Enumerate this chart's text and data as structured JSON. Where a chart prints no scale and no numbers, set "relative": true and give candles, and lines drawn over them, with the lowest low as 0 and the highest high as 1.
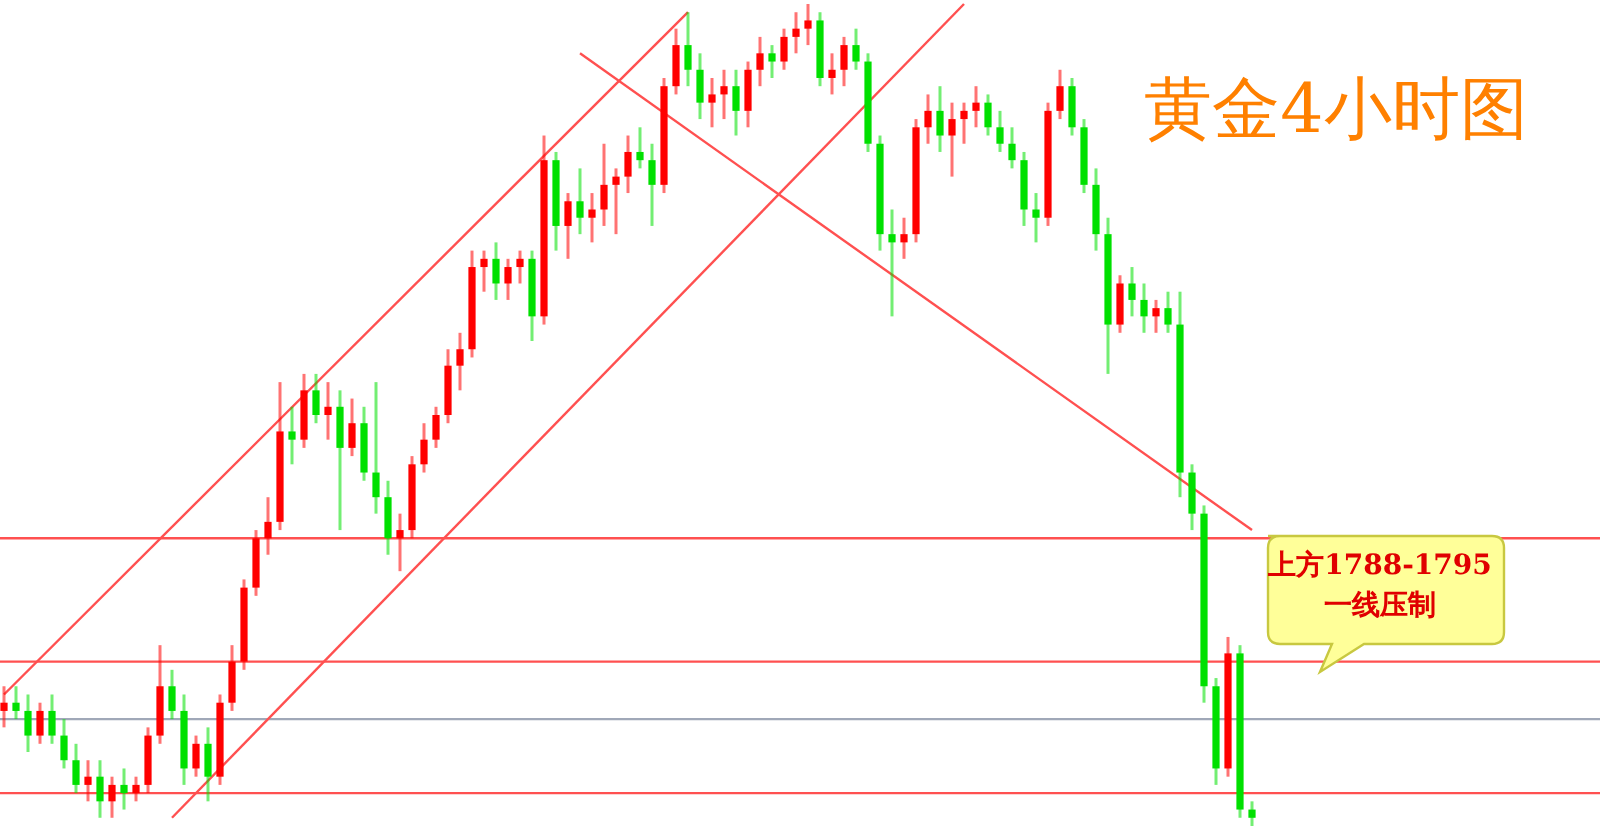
{
  "chart_data": {
    "type": "candlestick",
    "title": "黄金4小时图",
    "relative": true,
    "categories": [
      null,
      null,
      null,
      null,
      null,
      null,
      null,
      null,
      null,
      null,
      null,
      null,
      null,
      null,
      null,
      null,
      null,
      null,
      null,
      null,
      null,
      null,
      null,
      null,
      null,
      null,
      null,
      null,
      null,
      null,
      null,
      null,
      null,
      null,
      null,
      null,
      null,
      null,
      null,
      null,
      null,
      null,
      null,
      null,
      null,
      null,
      null,
      null,
      null,
      null,
      null,
      null,
      null,
      null,
      null,
      null,
      null,
      null,
      null,
      null,
      null,
      null,
      null,
      null,
      null,
      null,
      null,
      null,
      null,
      null,
      null,
      null,
      null,
      null,
      null,
      null,
      null,
      null,
      null,
      null,
      null,
      null,
      null,
      null,
      null,
      null,
      null,
      null,
      null,
      null,
      null,
      null,
      null,
      null,
      null,
      null,
      null,
      null,
      null,
      null,
      null,
      null,
      null,
      null,
      null
    ],
    "ohlc": [
      [
        0.14,
        0.17,
        0.12,
        0.15
      ],
      [
        0.15,
        0.17,
        0.13,
        0.14
      ],
      [
        0.14,
        0.16,
        0.09,
        0.11
      ],
      [
        0.11,
        0.15,
        0.1,
        0.14
      ],
      [
        0.14,
        0.16,
        0.1,
        0.11
      ],
      [
        0.11,
        0.13,
        0.07,
        0.08
      ],
      [
        0.08,
        0.1,
        0.04,
        0.05
      ],
      [
        0.05,
        0.08,
        0.03,
        0.06
      ],
      [
        0.06,
        0.08,
        0.01,
        0.03
      ],
      [
        0.03,
        0.06,
        0.01,
        0.05
      ],
      [
        0.05,
        0.07,
        0.02,
        0.04
      ],
      [
        0.04,
        0.06,
        0.03,
        0.05
      ],
      [
        0.05,
        0.12,
        0.04,
        0.11
      ],
      [
        0.11,
        0.22,
        0.1,
        0.17
      ],
      [
        0.17,
        0.19,
        0.13,
        0.14
      ],
      [
        0.14,
        0.16,
        0.05,
        0.07
      ],
      [
        0.07,
        0.11,
        0.06,
        0.1
      ],
      [
        0.1,
        0.12,
        0.03,
        0.06
      ],
      [
        0.06,
        0.16,
        0.05,
        0.15
      ],
      [
        0.15,
        0.22,
        0.14,
        0.2
      ],
      [
        0.2,
        0.3,
        0.19,
        0.29
      ],
      [
        0.29,
        0.36,
        0.28,
        0.35
      ],
      [
        0.35,
        0.4,
        0.33,
        0.37
      ],
      [
        0.37,
        0.54,
        0.36,
        0.48
      ],
      [
        0.48,
        0.51,
        0.44,
        0.47
      ],
      [
        0.47,
        0.55,
        0.46,
        0.53
      ],
      [
        0.53,
        0.55,
        0.49,
        0.5
      ],
      [
        0.5,
        0.54,
        0.47,
        0.51
      ],
      [
        0.51,
        0.53,
        0.36,
        0.46
      ],
      [
        0.46,
        0.52,
        0.45,
        0.49
      ],
      [
        0.49,
        0.51,
        0.42,
        0.43
      ],
      [
        0.43,
        0.54,
        0.38,
        0.4
      ],
      [
        0.4,
        0.42,
        0.33,
        0.35
      ],
      [
        0.35,
        0.38,
        0.31,
        0.36
      ],
      [
        0.36,
        0.45,
        0.35,
        0.44
      ],
      [
        0.44,
        0.49,
        0.43,
        0.47
      ],
      [
        0.47,
        0.51,
        0.46,
        0.5
      ],
      [
        0.5,
        0.58,
        0.49,
        0.56
      ],
      [
        0.56,
        0.6,
        0.53,
        0.58
      ],
      [
        0.58,
        0.7,
        0.57,
        0.68
      ],
      [
        0.68,
        0.7,
        0.65,
        0.69
      ],
      [
        0.69,
        0.71,
        0.64,
        0.66
      ],
      [
        0.66,
        0.69,
        0.64,
        0.68
      ],
      [
        0.68,
        0.7,
        0.66,
        0.69
      ],
      [
        0.69,
        0.7,
        0.59,
        0.62
      ],
      [
        0.62,
        0.84,
        0.61,
        0.81
      ],
      [
        0.81,
        0.82,
        0.7,
        0.73
      ],
      [
        0.73,
        0.77,
        0.69,
        0.76
      ],
      [
        0.76,
        0.8,
        0.72,
        0.74
      ],
      [
        0.74,
        0.77,
        0.71,
        0.75
      ],
      [
        0.75,
        0.83,
        0.73,
        0.78
      ],
      [
        0.78,
        0.8,
        0.72,
        0.79
      ],
      [
        0.79,
        0.84,
        0.77,
        0.82
      ],
      [
        0.82,
        0.85,
        0.8,
        0.81
      ],
      [
        0.81,
        0.83,
        0.73,
        0.78
      ],
      [
        0.78,
        0.91,
        0.77,
        0.9
      ],
      [
        0.9,
        0.97,
        0.89,
        0.95
      ],
      [
        0.95,
        0.99,
        0.9,
        0.92
      ],
      [
        0.92,
        0.94,
        0.86,
        0.88
      ],
      [
        0.88,
        0.91,
        0.85,
        0.89
      ],
      [
        0.89,
        0.92,
        0.86,
        0.9
      ],
      [
        0.9,
        0.92,
        0.84,
        0.87
      ],
      [
        0.87,
        0.93,
        0.85,
        0.92
      ],
      [
        0.92,
        0.96,
        0.9,
        0.94
      ],
      [
        0.94,
        0.95,
        0.91,
        0.93
      ],
      [
        0.93,
        0.97,
        0.92,
        0.96
      ],
      [
        0.96,
        0.99,
        0.94,
        0.97
      ],
      [
        0.97,
        1.0,
        0.95,
        0.98
      ],
      [
        0.98,
        0.99,
        0.9,
        0.91
      ],
      [
        0.91,
        0.94,
        0.89,
        0.92
      ],
      [
        0.92,
        0.96,
        0.9,
        0.95
      ],
      [
        0.95,
        0.97,
        0.92,
        0.93
      ],
      [
        0.93,
        0.94,
        0.82,
        0.83
      ],
      [
        0.83,
        0.84,
        0.7,
        0.72
      ],
      [
        0.72,
        0.75,
        0.62,
        0.71
      ],
      [
        0.71,
        0.74,
        0.69,
        0.72
      ],
      [
        0.72,
        0.86,
        0.71,
        0.85
      ],
      [
        0.85,
        0.89,
        0.83,
        0.87
      ],
      [
        0.87,
        0.9,
        0.82,
        0.84
      ],
      [
        0.84,
        0.88,
        0.79,
        0.86
      ],
      [
        0.86,
        0.88,
        0.83,
        0.87
      ],
      [
        0.87,
        0.9,
        0.85,
        0.88
      ],
      [
        0.88,
        0.89,
        0.84,
        0.85
      ],
      [
        0.85,
        0.87,
        0.82,
        0.83
      ],
      [
        0.83,
        0.85,
        0.8,
        0.81
      ],
      [
        0.81,
        0.82,
        0.73,
        0.75
      ],
      [
        0.75,
        0.77,
        0.71,
        0.74
      ],
      [
        0.74,
        0.88,
        0.73,
        0.87
      ],
      [
        0.87,
        0.92,
        0.86,
        0.9
      ],
      [
        0.9,
        0.91,
        0.84,
        0.85
      ],
      [
        0.85,
        0.86,
        0.77,
        0.78
      ],
      [
        0.78,
        0.8,
        0.7,
        0.72
      ],
      [
        0.72,
        0.74,
        0.55,
        0.61
      ],
      [
        0.61,
        0.67,
        0.6,
        0.66
      ],
      [
        0.66,
        0.68,
        0.62,
        0.64
      ],
      [
        0.64,
        0.66,
        0.6,
        0.62
      ],
      [
        0.62,
        0.64,
        0.6,
        0.63
      ],
      [
        0.63,
        0.65,
        0.6,
        0.61
      ],
      [
        0.61,
        0.65,
        0.4,
        0.43
      ],
      [
        0.43,
        0.44,
        0.36,
        0.38
      ],
      [
        0.38,
        0.39,
        0.15,
        0.17
      ],
      [
        0.17,
        0.18,
        0.05,
        0.07
      ],
      [
        0.07,
        0.23,
        0.06,
        0.21
      ],
      [
        0.21,
        0.22,
        0.01,
        0.02
      ],
      [
        0.02,
        0.03,
        0.0,
        0.01
      ]
    ],
    "series": [
      {
        "type": "line",
        "color": "#ff5050",
        "values": [
          0.16,
          null,
          null,
          null,
          null,
          null,
          null,
          null,
          null,
          null,
          null,
          null,
          null,
          null,
          null,
          null,
          null,
          null,
          null,
          null,
          null,
          null,
          null,
          null,
          null,
          null,
          null,
          null,
          null,
          null,
          null,
          null,
          null,
          null,
          null,
          null,
          null,
          null,
          null,
          null,
          null,
          null,
          null,
          null,
          null,
          null,
          null,
          null,
          null,
          null,
          null,
          null,
          null,
          null,
          null,
          null,
          null,
          0.99,
          null,
          null,
          null,
          null,
          null,
          null,
          null,
          null,
          null,
          null,
          null,
          null,
          null,
          null,
          null,
          null,
          null,
          null,
          null,
          null,
          null,
          null,
          null,
          null,
          null,
          null,
          null,
          null,
          null,
          null,
          null,
          null,
          null,
          null,
          null,
          null,
          null,
          null,
          null,
          null,
          null,
          null,
          null,
          null,
          null,
          null,
          null
        ]
      },
      {
        "type": "line",
        "color": "#ff5050",
        "values": [
          null,
          null,
          null,
          null,
          null,
          null,
          null,
          null,
          null,
          null,
          null,
          null,
          null,
          null,
          0.01,
          null,
          null,
          null,
          null,
          null,
          null,
          null,
          null,
          null,
          null,
          null,
          null,
          null,
          null,
          null,
          null,
          null,
          null,
          null,
          null,
          null,
          null,
          null,
          null,
          null,
          null,
          null,
          null,
          null,
          null,
          null,
          null,
          null,
          null,
          null,
          null,
          null,
          null,
          null,
          null,
          null,
          null,
          null,
          null,
          null,
          null,
          null,
          null,
          null,
          null,
          null,
          null,
          null,
          null,
          null,
          null,
          null,
          null,
          null,
          null,
          null,
          null,
          null,
          null,
          null,
          1.0,
          null,
          null,
          null,
          null,
          null,
          null,
          null,
          null,
          null,
          null,
          null,
          null,
          null,
          null,
          null,
          null,
          null,
          null,
          null,
          null,
          null,
          null,
          null,
          null
        ]
      },
      {
        "type": "line",
        "color": "#ff5050",
        "values": [
          null,
          null,
          null,
          null,
          null,
          null,
          null,
          null,
          null,
          null,
          null,
          null,
          null,
          null,
          null,
          null,
          null,
          null,
          null,
          null,
          null,
          null,
          null,
          null,
          null,
          null,
          null,
          null,
          null,
          null,
          null,
          null,
          null,
          null,
          null,
          null,
          null,
          null,
          null,
          null,
          null,
          null,
          null,
          null,
          null,
          null,
          null,
          null,
          0.94,
          null,
          null,
          null,
          null,
          null,
          null,
          null,
          null,
          null,
          null,
          null,
          null,
          null,
          null,
          null,
          null,
          null,
          null,
          null,
          null,
          null,
          null,
          null,
          null,
          null,
          null,
          null,
          null,
          null,
          null,
          null,
          null,
          null,
          null,
          null,
          null,
          null,
          null,
          null,
          null,
          null,
          null,
          null,
          null,
          null,
          null,
          null,
          null,
          null,
          null,
          null,
          null,
          null,
          null,
          null,
          0.36
        ]
      }
    ],
    "ref_lines": [
      {
        "axis": "y",
        "value": 0.35,
        "color": "#ff5050"
      },
      {
        "axis": "y",
        "value": 0.2,
        "color": "#ff5050"
      },
      {
        "axis": "y",
        "value": 0.13,
        "color": "#a0a8b8"
      },
      {
        "axis": "y",
        "value": 0.04,
        "color": "#ff5050"
      }
    ],
    "annotations": [
      "上方1788-1795\n一线压制"
    ]
  }
}
